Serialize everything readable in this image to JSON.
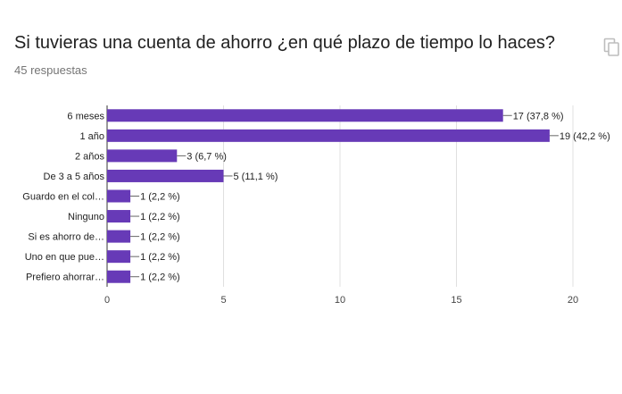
{
  "header": {
    "title": "Si tuvieras una cuenta de ahorro ¿en qué plazo de tiempo lo haces?",
    "subtitle": "45 respuestas",
    "copy_icon": "copy-icon"
  },
  "colors": {
    "bar": "#673ab7",
    "axis": "#333333",
    "grid": "#e0e0e0"
  },
  "chart_data": {
    "type": "bar",
    "orientation": "horizontal",
    "categories": [
      "6 meses",
      "1 año",
      "2 años",
      "De 3 a 5 años",
      "Guardo en el col…",
      "Ninguno",
      "Si es ahorro de…",
      "Uno en que pue…",
      "Prefiero ahorrar…"
    ],
    "values": [
      17,
      19,
      3,
      5,
      1,
      1,
      1,
      1,
      1
    ],
    "data_labels": [
      "17 (37,8 %)",
      "19 (42,2 %)",
      "3 (6,7 %)",
      "5 (11,1 %)",
      "1 (2,2 %)",
      "1 (2,2 %)",
      "1 (2,2 %)",
      "1 (2,2 %)",
      "1 (2,2 %)"
    ],
    "xlim": [
      0,
      20
    ],
    "xticks": [
      0,
      5,
      10,
      15,
      20
    ],
    "grid": true,
    "legend": "none"
  }
}
